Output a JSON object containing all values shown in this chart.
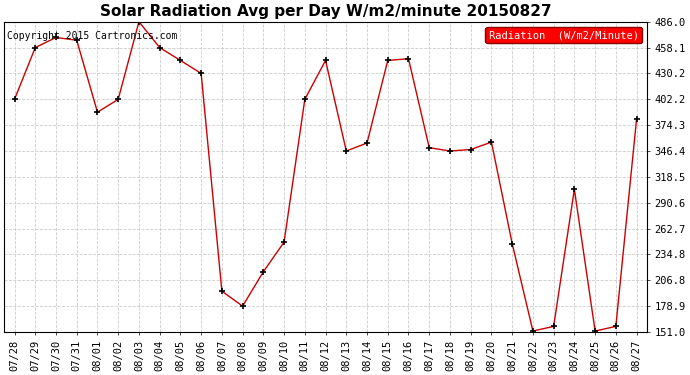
{
  "title": "Solar Radiation Avg per Day W/m2/minute 20150827",
  "copyright": "Copyright 2015 Cartronics.com",
  "legend_label": "Radiation  (W/m2/Minute)",
  "x_labels": [
    "07/28",
    "07/29",
    "07/30",
    "07/31",
    "08/01",
    "08/02",
    "08/03",
    "08/04",
    "08/05",
    "08/06",
    "08/07",
    "08/08",
    "08/09",
    "08/10",
    "08/11",
    "08/12",
    "08/13",
    "08/14",
    "08/15",
    "08/16",
    "08/17",
    "08/18",
    "08/19",
    "08/20",
    "08/21",
    "08/22",
    "08/23",
    "08/24",
    "08/25",
    "08/26",
    "08/27"
  ],
  "y_values": [
    402.2,
    458.1,
    469.0,
    466.0,
    388.3,
    402.2,
    486.0,
    458.1,
    444.2,
    430.2,
    195.0,
    178.9,
    216.0,
    248.0,
    402.2,
    444.2,
    346.4,
    355.0,
    444.2,
    446.0,
    350.0,
    346.4,
    348.0,
    356.0,
    246.5,
    152.0,
    157.0,
    305.0,
    152.0,
    157.0,
    381.0
  ],
  "line_color": "#cc0000",
  "marker_color": "#000000",
  "bg_color": "#ffffff",
  "plot_bg_color": "#ffffff",
  "grid_color": "#cccccc",
  "title_fontsize": 11,
  "tick_fontsize": 7.5,
  "copyright_fontsize": 7,
  "legend_fontsize": 7.5,
  "ylim": [
    151.0,
    486.0
  ],
  "yticks": [
    151.0,
    178.9,
    206.8,
    234.8,
    262.7,
    290.6,
    318.5,
    346.4,
    374.3,
    402.2,
    430.2,
    458.1,
    486.0
  ]
}
